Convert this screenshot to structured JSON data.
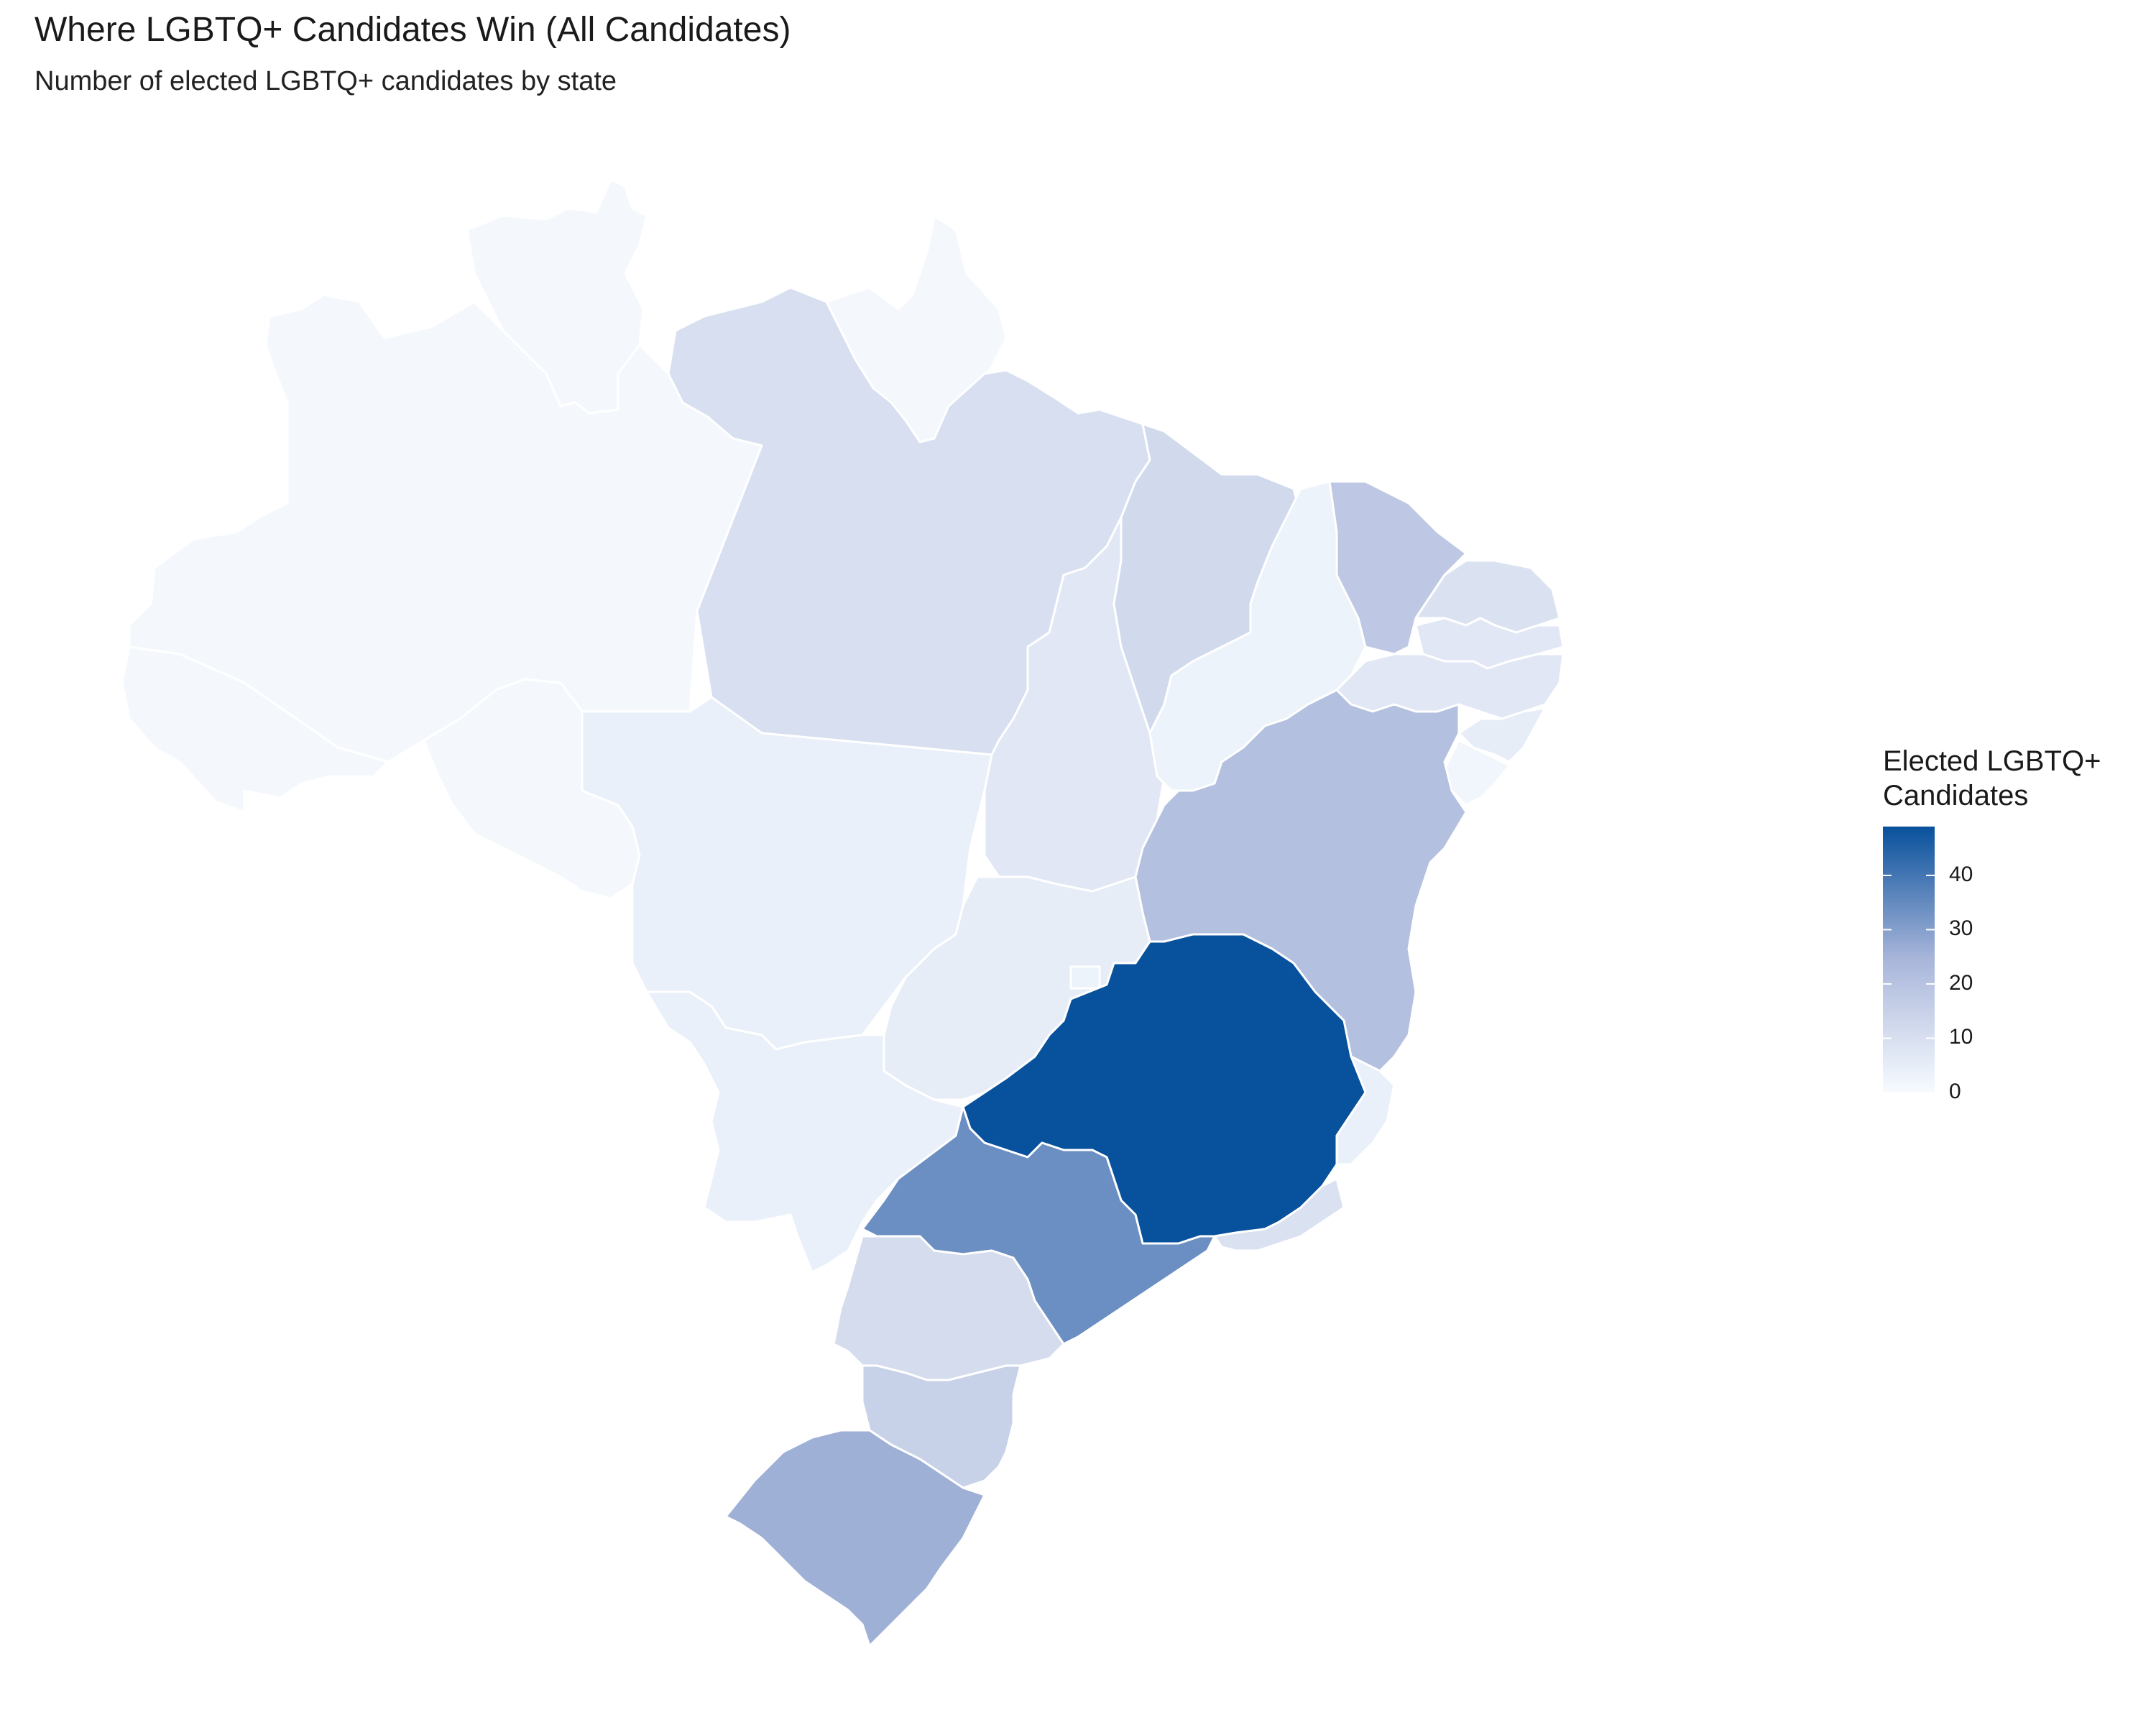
{
  "title": "Where LGBTQ+ Candidates Win (All Candidates)",
  "subtitle": "Number of elected LGBTQ+ candidates by state",
  "legend": {
    "title": "Elected LGBTQ+\nCandidates",
    "min": 0,
    "max": 49,
    "ticks": [
      0,
      10,
      20,
      30,
      40
    ],
    "color_low": "#f7fbff",
    "color_high": "#08519c"
  },
  "map_data": {
    "type": "choropleth",
    "region": "Brazil states",
    "values": {
      "AM": 1,
      "RR": 1,
      "AP": 1,
      "PA": 10,
      "AC": 1,
      "RO": 1,
      "MT": 4,
      "MS": 4,
      "TO": 7,
      "GO": 5,
      "DF": 3,
      "MA": 12,
      "PI": 3,
      "CE": 18,
      "RN": 9,
      "PB": 7,
      "PE": 7,
      "AL": 5,
      "SE": 2,
      "BA": 21,
      "MG": 49,
      "ES": 4,
      "RJ": 9,
      "SP": 34,
      "PR": 11,
      "SC": 15,
      "RS": 26
    }
  }
}
